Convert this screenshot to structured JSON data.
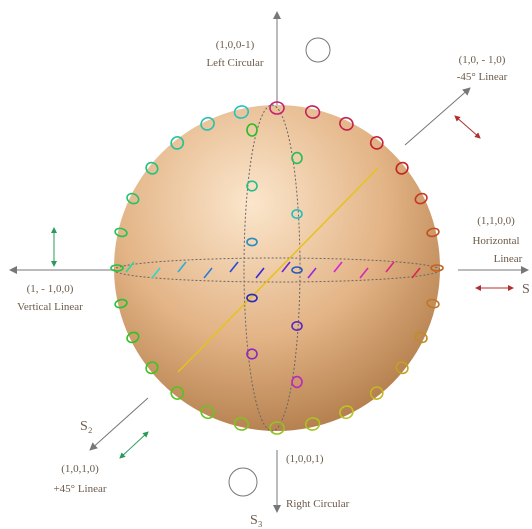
{
  "labels": {
    "left_circular": {
      "stokes": "(1,0,0-1)",
      "name": "Left Circular"
    },
    "minus45": {
      "stokes": "(1,0, - 1,0)",
      "name": "-45° Linear"
    },
    "horizontal": {
      "stokes": "(1,1,0,0)",
      "name_line1": "Horizontal",
      "name_line2": "Linear"
    },
    "s1": "S",
    "vertical": {
      "stokes": "(1, - 1,0,0)",
      "name": "Vertical Linear"
    },
    "s2": "S₂",
    "plus45": {
      "stokes": "(1,0,1,0)",
      "name": "+45° Linear"
    },
    "right_circular": {
      "stokes": "(1,0,0,1)",
      "name": "Right Circular"
    },
    "s3": "S₃"
  }
}
